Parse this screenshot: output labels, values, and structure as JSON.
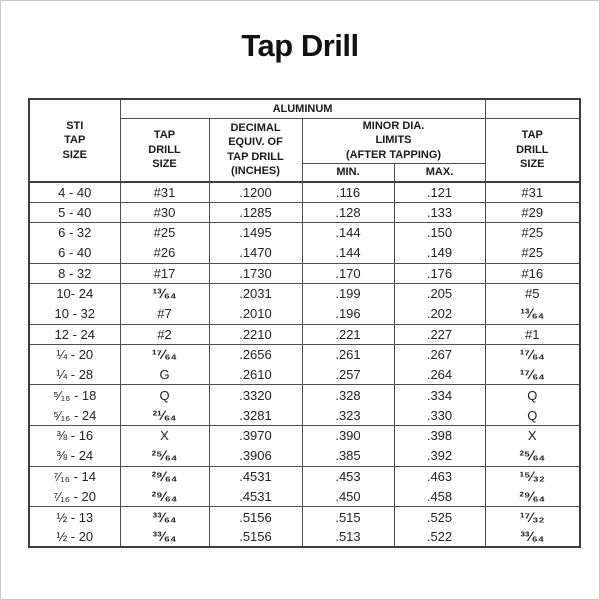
{
  "page": {
    "title": "Tap Drill"
  },
  "table": {
    "banner_label": "ALUMINUM",
    "headers": {
      "sti_tap_size": "STI\nTAP\nSIZE",
      "tap_drill_size_left": "TAP\nDRILL\nSIZE",
      "decimal_equiv": "DECIMAL\nEQUIV. OF\nTAP DRILL\n(INCHES)",
      "minor_dia_limits": "MINOR DIA.\nLIMITS\n(AFTER TAPPING)",
      "min": "MIN.",
      "max": "MAX.",
      "tap_drill_size_right": "TAP\nDRILL\nSIZE"
    },
    "column_keys": [
      "sti-tap-size",
      "tap-drill-size",
      "decimal-equiv-inches",
      "minor-dia-min",
      "minor-dia-max",
      "tap-drill-size-right"
    ],
    "row_groups": [
      [
        [
          "4 - 40",
          "#31",
          ".1200",
          ".116",
          ".121",
          "#31"
        ]
      ],
      [
        [
          "5 - 40",
          "#30",
          ".1285",
          ".128",
          ".133",
          "#29"
        ]
      ],
      [
        [
          "6 - 32",
          "#25",
          ".1495",
          ".144",
          ".150",
          "#25"
        ],
        [
          "6 - 40",
          "#26",
          ".1470",
          ".144",
          ".149",
          "#25"
        ]
      ],
      [
        [
          "8 - 32",
          "#17",
          ".1730",
          ".170",
          ".176",
          "#16"
        ]
      ],
      [
        [
          "10- 24",
          "¹³⁄₆₄",
          ".2031",
          ".199",
          ".205",
          "#5"
        ],
        [
          "10 - 32",
          "#7",
          ".2010",
          ".196",
          ".202",
          "¹³⁄₆₄"
        ]
      ],
      [
        [
          "12 - 24",
          "#2",
          ".2210",
          ".221",
          ".227",
          "#1"
        ]
      ],
      [
        [
          "¼ - 20",
          "¹⁷⁄₆₄",
          ".2656",
          ".261",
          ".267",
          "¹⁷⁄₆₄"
        ],
        [
          "¼ - 28",
          "G",
          ".2610",
          ".257",
          ".264",
          "¹⁷⁄₆₄"
        ]
      ],
      [
        [
          "⁵⁄₁₆ - 18",
          "Q",
          ".3320",
          ".328",
          ".334",
          "Q"
        ],
        [
          "⁵⁄₁₆ - 24",
          "²¹⁄₆₄",
          ".3281",
          ".323",
          ".330",
          "Q"
        ]
      ],
      [
        [
          "⅜ - 16",
          "X",
          ".3970",
          ".390",
          ".398",
          "X"
        ],
        [
          "⅜ - 24",
          "²⁵⁄₆₄",
          ".3906",
          ".385",
          ".392",
          "²⁵⁄₆₄"
        ]
      ],
      [
        [
          "⁷⁄₁₆ - 14",
          "²⁹⁄₆₄",
          ".4531",
          ".453",
          ".463",
          "¹⁵⁄₃₂"
        ],
        [
          "⁷⁄₁₆ - 20",
          "²⁹⁄₆₄",
          ".4531",
          ".450",
          ".458",
          "²⁹⁄₆₄"
        ]
      ],
      [
        [
          "½ - 13",
          "³³⁄₆₄",
          ".5156",
          ".515",
          ".525",
          "¹⁷⁄₃₂"
        ],
        [
          "½ - 20",
          "³³⁄₆₄",
          ".5156",
          ".513",
          ".522",
          "³³⁄₆₄"
        ]
      ]
    ]
  },
  "colors": {
    "background": "#ffffff",
    "text": "#1e1e1e",
    "grid_line": "#4f4f4f",
    "outer_border": "#3d3d3d",
    "page_frame": "#c9c9c9"
  }
}
